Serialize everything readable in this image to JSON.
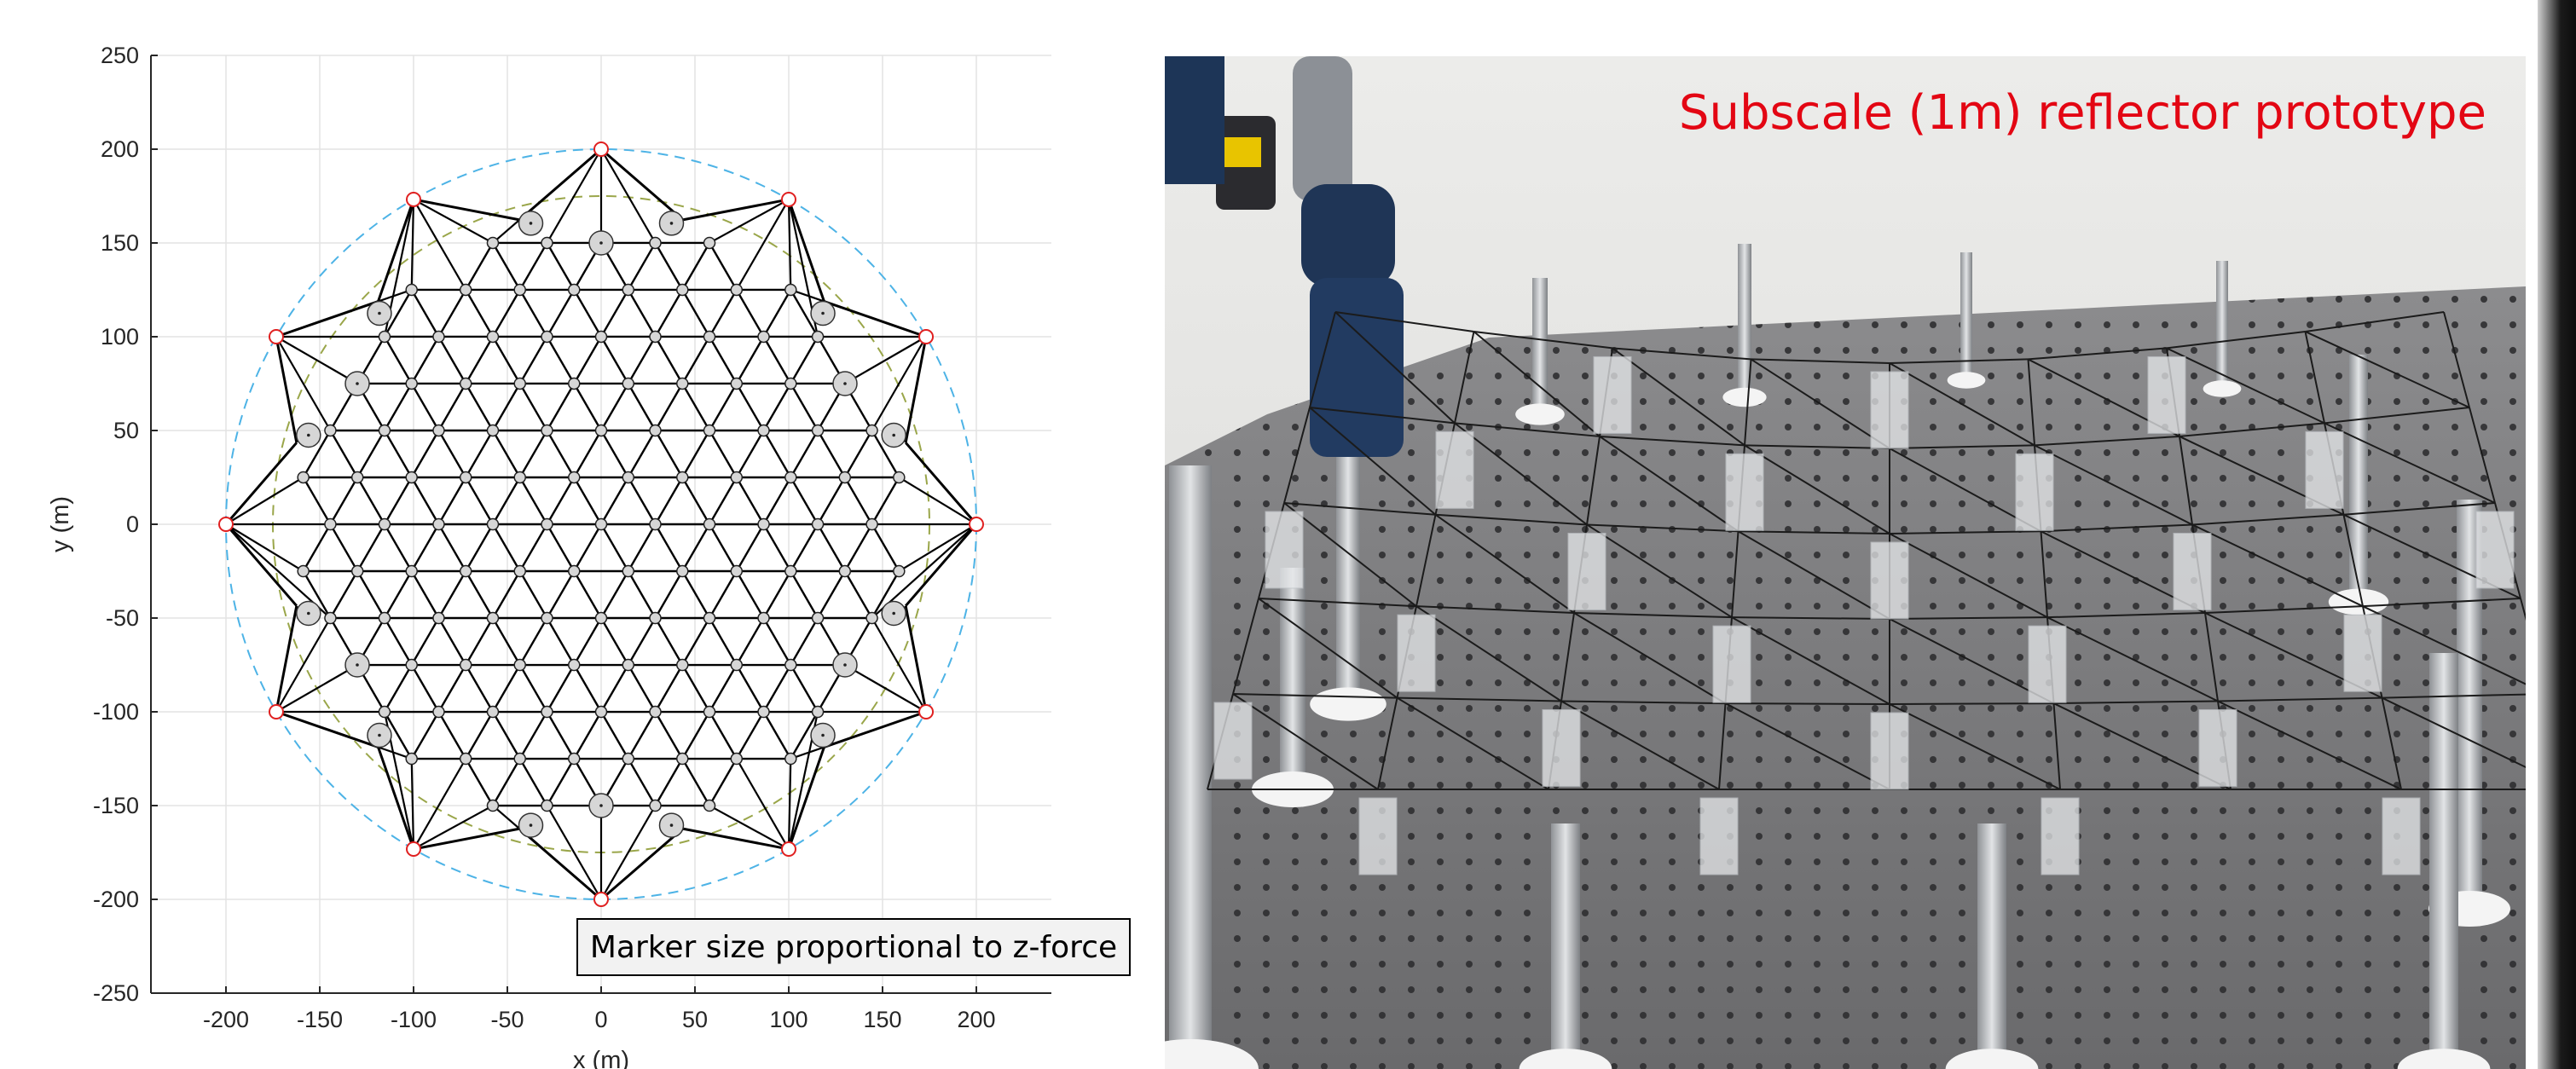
{
  "chart_data": {
    "type": "scatter",
    "title": "",
    "xlabel": "x (m)",
    "ylabel": "y (m)",
    "xlim": [
      -240,
      240
    ],
    "ylim": [
      -250,
      250
    ],
    "xticks": [
      -200,
      -150,
      -100,
      -50,
      0,
      50,
      100,
      150,
      200
    ],
    "yticks": [
      250,
      200,
      150,
      100,
      50,
      0,
      -50,
      -100,
      -150,
      -200,
      -250
    ],
    "grid": true,
    "aspect": "equal",
    "outer_circle": {
      "radius": 200,
      "style": "dashed",
      "color": "#4db3e6"
    },
    "inner_circle": {
      "radius": 175,
      "style": "dashed",
      "color": "#9aa64a"
    },
    "mesh": {
      "lattice": "triangular",
      "spacing": 28.87,
      "color": "#000000"
    },
    "boundary_nodes": [
      {
        "x": 0,
        "y": 200
      },
      {
        "x": 100,
        "y": 173.2
      },
      {
        "x": 173.2,
        "y": 100
      },
      {
        "x": 200,
        "y": 0
      },
      {
        "x": 173.2,
        "y": -100
      },
      {
        "x": 100,
        "y": -173.2
      },
      {
        "x": 0,
        "y": -200
      },
      {
        "x": -100,
        "y": -173.2
      },
      {
        "x": -173.2,
        "y": -100
      },
      {
        "x": -200,
        "y": 0
      },
      {
        "x": -173.2,
        "y": 100
      },
      {
        "x": -100,
        "y": 173.2
      }
    ],
    "boundary_node_color": "#e02020",
    "large_marker_nodes": [
      {
        "x": -37.5,
        "y": 160.5
      },
      {
        "x": 37.5,
        "y": 160.5
      },
      {
        "x": 0,
        "y": 150
      },
      {
        "x": 118.2,
        "y": 112.5
      },
      {
        "x": 130,
        "y": 75
      },
      {
        "x": 156,
        "y": 47.5
      },
      {
        "x": 156,
        "y": -47.5
      },
      {
        "x": 130,
        "y": -75
      },
      {
        "x": 118.2,
        "y": -112.5
      },
      {
        "x": 37.5,
        "y": -160.5
      },
      {
        "x": 0,
        "y": -150
      },
      {
        "x": -37.5,
        "y": -160.5
      },
      {
        "x": -118.2,
        "y": -112.5
      },
      {
        "x": -130,
        "y": -75
      },
      {
        "x": -156,
        "y": -47.5
      },
      {
        "x": -156,
        "y": 47.5
      },
      {
        "x": -130,
        "y": 75
      },
      {
        "x": -118.2,
        "y": 112.5
      }
    ],
    "marker_face_color": "#d6d6d6"
  },
  "annotation": {
    "text": "Marker size proportional to z-force"
  },
  "photo": {
    "caption": "Subscale (1m) reflector prototype",
    "caption_color": "#e30613"
  }
}
